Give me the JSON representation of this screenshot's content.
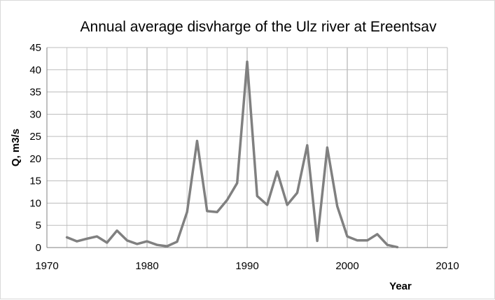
{
  "chart_data": {
    "type": "line",
    "title": "Annual average disvharge of the Ulz river at Ereentsav",
    "xlabel": "Year",
    "ylabel": "Q, m3/s",
    "xlim": [
      1970,
      2010
    ],
    "ylim": [
      0,
      45
    ],
    "xticks": [
      1970,
      1980,
      1990,
      2000,
      2010
    ],
    "yticks": [
      0,
      5,
      10,
      15,
      20,
      25,
      30,
      35,
      40,
      45
    ],
    "grid": true,
    "series": [
      {
        "color": "#808080",
        "x": [
          1972,
          1973,
          1974,
          1975,
          1976,
          1977,
          1978,
          1979,
          1980,
          1981,
          1982,
          1983,
          1984,
          1985,
          1986,
          1987,
          1988,
          1989,
          1990,
          1991,
          1992,
          1993,
          1994,
          1995,
          1996,
          1997,
          1998,
          1999,
          2000,
          2001,
          2002,
          2003,
          2004,
          2005
        ],
        "y": [
          2.3,
          1.4,
          2.0,
          2.5,
          1.1,
          3.8,
          1.6,
          0.8,
          1.4,
          0.6,
          0.3,
          1.3,
          8.0,
          24.0,
          8.2,
          8.0,
          10.7,
          14.5,
          41.8,
          11.6,
          9.6,
          17.1,
          9.6,
          12.3,
          23.0,
          1.5,
          22.5,
          9.3,
          2.5,
          1.6,
          1.6,
          3.0,
          0.6,
          0.1
        ]
      }
    ]
  }
}
